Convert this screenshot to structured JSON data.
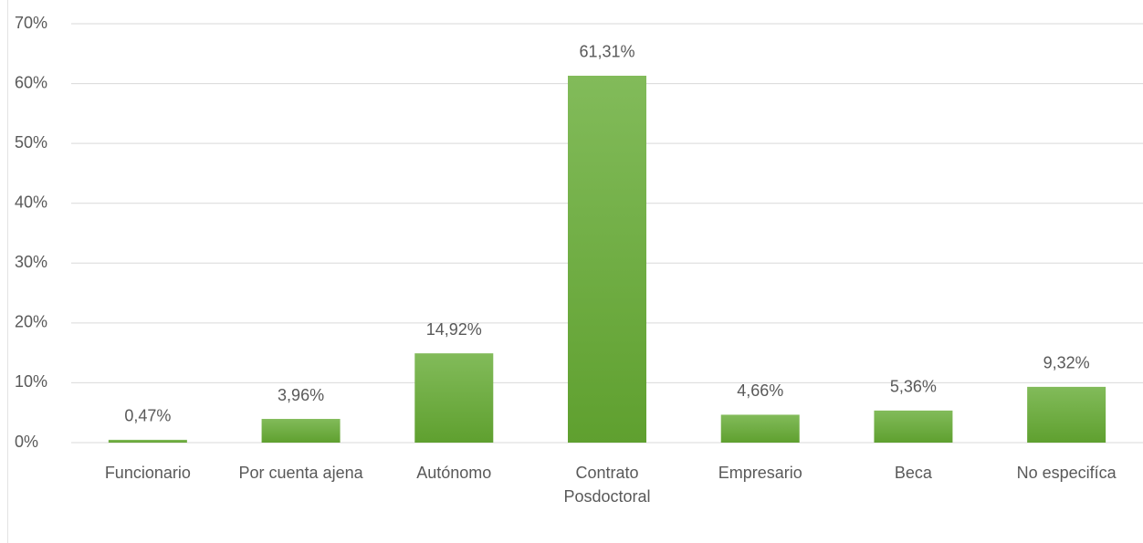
{
  "chart_data": {
    "type": "bar",
    "categories": [
      "Funcionario",
      "Por cuenta ajena",
      "Autónomo",
      "Contrato Posdoctoral",
      "Empresario",
      "Beca",
      "No especifíca"
    ],
    "values": [
      0.47,
      3.96,
      14.92,
      61.31,
      4.66,
      5.36,
      9.32
    ],
    "value_labels": [
      "0,47%",
      "3,96%",
      "14,92%",
      "61,31%",
      "4,66%",
      "5,36%",
      "9,32%"
    ],
    "color": "#6aad3a",
    "ylim": [
      0,
      70
    ],
    "yticks": [
      {
        "value": 0,
        "label": "0%"
      },
      {
        "value": 10,
        "label": "10%"
      },
      {
        "value": 20,
        "label": "20%"
      },
      {
        "value": 30,
        "label": "30%"
      },
      {
        "value": 40,
        "label": "40%"
      },
      {
        "value": 50,
        "label": "50%"
      },
      {
        "value": 60,
        "label": "60%"
      },
      {
        "value": 70,
        "label": "70%"
      }
    ],
    "grid": true
  }
}
